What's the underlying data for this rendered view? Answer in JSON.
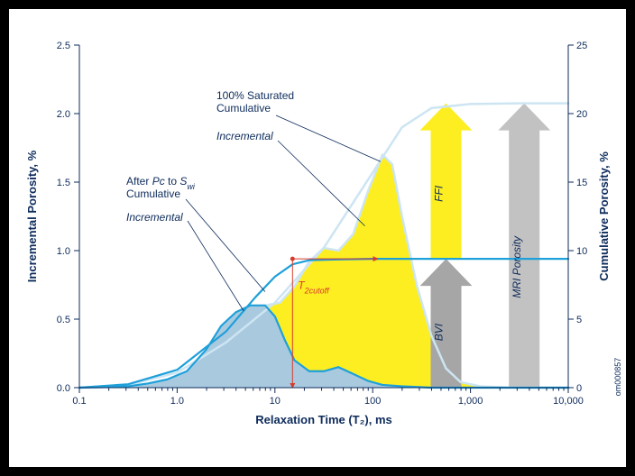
{
  "chart": {
    "type": "line-area-log",
    "xlabel": "Relaxation Time (T₂), ms",
    "ylabel_left": "Incremental Porosity, %",
    "ylabel_right": "Cumulative Porosity, %",
    "credit": "om000857",
    "xlog_min": 0.1,
    "xlog_max": 10000,
    "yleft_min": 0,
    "yleft_max": 2.5,
    "yright_min": 0,
    "yright_max": 25,
    "xticks": [
      "0.1",
      "1.0",
      "10",
      "100",
      "1,000",
      "10,000"
    ],
    "yticks_left": [
      "0.0",
      "0.5",
      "1.0",
      "1.5",
      "2.0",
      "2.5"
    ],
    "yticks_right": [
      "0",
      "5",
      "10",
      "15",
      "20",
      "25"
    ],
    "background": "#ffffff",
    "colors": {
      "axis": "#0d2b5b",
      "fill_yellow": "#fcee21",
      "fill_blue": "#a9c9df",
      "light_blue": "#cde5f2",
      "line_blue": "#1ea0d9",
      "arrow_gray": "#a6a6a6",
      "arrow_yellow": "#fcee21",
      "red": "#d93a2b"
    },
    "line_widths": {
      "main": 2.2,
      "light": 2.5,
      "axis": 1
    },
    "annotations": {
      "sat_cum": "100% Saturated\nCumulative",
      "sat_inc": "Incremental",
      "pc_cum_a": "After ",
      "pc_cum_pc": "Pc",
      "pc_cum_b": " to ",
      "pc_cum_sw": "S",
      "pc_cum_swi": "wi",
      "pc_cum_c": "Cumulative",
      "pc_inc": "Incremental",
      "t2cutoff_a": "T",
      "t2cutoff_b": "2cutoff",
      "arrow_bvi": "BVI",
      "arrow_ffi": "FFI",
      "arrow_mri": "MRI Porosity"
    },
    "series": {
      "inc100": {
        "color": "#cde5f2",
        "fill": "#fcee21",
        "pts": [
          [
            -1,
            0
          ],
          [
            -0.7,
            0.005
          ],
          [
            -0.5,
            0.01
          ],
          [
            -0.3,
            0.03
          ],
          [
            -0.1,
            0.06
          ],
          [
            0.1,
            0.12
          ],
          [
            0.3,
            0.28
          ],
          [
            0.45,
            0.45
          ],
          [
            0.6,
            0.55
          ],
          [
            0.75,
            0.6
          ],
          [
            0.9,
            0.6
          ],
          [
            1.05,
            0.62
          ],
          [
            1.2,
            0.74
          ],
          [
            1.35,
            0.92
          ],
          [
            1.5,
            1.02
          ],
          [
            1.65,
            1.0
          ],
          [
            1.8,
            1.12
          ],
          [
            1.95,
            1.43
          ],
          [
            2.1,
            1.7
          ],
          [
            2.2,
            1.63
          ],
          [
            2.3,
            1.25
          ],
          [
            2.45,
            0.75
          ],
          [
            2.6,
            0.38
          ],
          [
            2.75,
            0.14
          ],
          [
            2.9,
            0.04
          ],
          [
            3.1,
            0.01
          ],
          [
            3.4,
            0
          ],
          [
            4,
            0
          ]
        ]
      },
      "cum100": {
        "color": "#cde5f2",
        "pts": [
          [
            -1,
            0
          ],
          [
            -0.5,
            0.2
          ],
          [
            0,
            1.1
          ],
          [
            0.5,
            3.3
          ],
          [
            1,
            6.2
          ],
          [
            1.5,
            10.2
          ],
          [
            2,
            15.7
          ],
          [
            2.3,
            19
          ],
          [
            2.6,
            20.4
          ],
          [
            3,
            20.7
          ],
          [
            3.5,
            20.75
          ],
          [
            4,
            20.75
          ]
        ]
      },
      "incPc": {
        "color": "#1ea0d9",
        "fill": "#a9c9df",
        "pts": [
          [
            -1,
            0
          ],
          [
            -0.7,
            0.005
          ],
          [
            -0.5,
            0.01
          ],
          [
            -0.3,
            0.03
          ],
          [
            -0.1,
            0.06
          ],
          [
            0.1,
            0.12
          ],
          [
            0.3,
            0.28
          ],
          [
            0.45,
            0.45
          ],
          [
            0.6,
            0.55
          ],
          [
            0.75,
            0.6
          ],
          [
            0.9,
            0.6
          ],
          [
            1.0,
            0.52
          ],
          [
            1.1,
            0.35
          ],
          [
            1.2,
            0.2
          ],
          [
            1.35,
            0.12
          ],
          [
            1.5,
            0.12
          ],
          [
            1.65,
            0.15
          ],
          [
            1.8,
            0.1
          ],
          [
            1.95,
            0.05
          ],
          [
            2.1,
            0.02
          ],
          [
            2.3,
            0.01
          ],
          [
            2.6,
            0
          ],
          [
            4,
            0
          ]
        ]
      },
      "cumPc": {
        "color": "#1ea0d9",
        "pts": [
          [
            -1,
            0
          ],
          [
            -0.5,
            0.25
          ],
          [
            0,
            1.3
          ],
          [
            0.5,
            4.1
          ],
          [
            0.8,
            6.6
          ],
          [
            1.0,
            8.1
          ],
          [
            1.18,
            9.0
          ],
          [
            1.35,
            9.3
          ],
          [
            1.6,
            9.35
          ],
          [
            2.0,
            9.4
          ],
          [
            3.0,
            9.4
          ],
          [
            4,
            9.4
          ]
        ]
      }
    },
    "t2cutoff_logx": 1.18,
    "arrows": {
      "bvi": {
        "logx": 2.75,
        "color": "#a6a6a6",
        "base": 0,
        "top_right": 9.4,
        "width": 34
      },
      "ffi": {
        "logx": 2.75,
        "color": "#fcee21",
        "base": 9.4,
        "top_right": 20.75,
        "width": 34
      },
      "mri": {
        "logx": 3.55,
        "color": "#c2c2c2",
        "base": 0,
        "top_right": 20.75,
        "width": 34
      }
    }
  }
}
